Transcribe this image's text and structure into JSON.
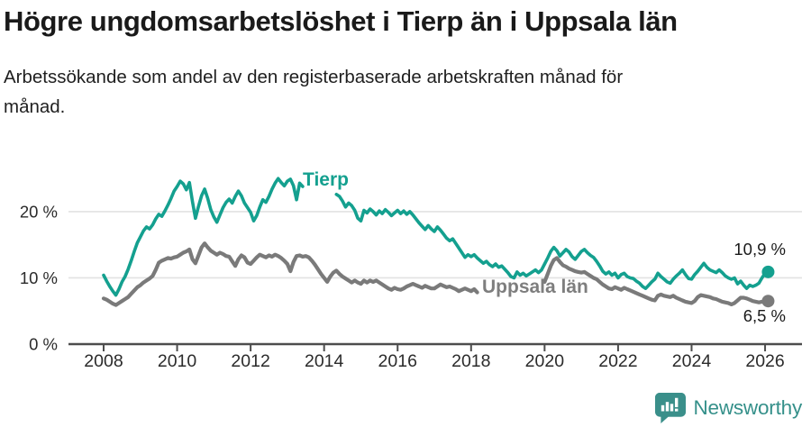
{
  "header": {
    "title": "Högre ungdomsarbetslöshet i Tierp än i Uppsala län",
    "subtitle": "Arbetssökande som andel av den registerbaserade arbetskraften månad för månad."
  },
  "chart_data": {
    "type": "line",
    "title": "Högre ungdomsarbetslöshet i Tierp än i Uppsala län",
    "subtitle": "Arbetssökande som andel av den registerbaserade arbetskraften månad för månad.",
    "unit": "%",
    "x_start": "2008-01",
    "x_end": "2026-02",
    "x_step": "month",
    "x_ticks": [
      "2008",
      "2010",
      "2012",
      "2014",
      "2016",
      "2018",
      "2020",
      "2022",
      "2024",
      "2026"
    ],
    "y_ticks": [
      "0 %",
      "10 %",
      "20 %"
    ],
    "ylim": [
      0,
      26
    ],
    "grid": "horizontal",
    "legend_position": "inline-labels",
    "series": [
      {
        "name": "Tierp",
        "color": "#14a08f",
        "end_label": "10,9 %",
        "end_value": 10.9,
        "values": [
          10.4,
          9.5,
          8.7,
          8.0,
          7.4,
          8.3,
          9.4,
          10.2,
          11.3,
          12.6,
          14.0,
          15.3,
          16.2,
          17.1,
          17.7,
          17.4,
          18.0,
          18.9,
          19.6,
          19.3,
          20.1,
          21.0,
          22.0,
          23.1,
          23.8,
          24.6,
          24.2,
          23.3,
          24.4,
          21.5,
          19.0,
          20.8,
          22.4,
          23.4,
          22.0,
          20.3,
          19.2,
          18.4,
          19.5,
          20.6,
          21.4,
          21.9,
          21.3,
          22.3,
          23.1,
          22.4,
          21.3,
          20.6,
          19.9,
          18.6,
          19.4,
          20.7,
          21.8,
          21.4,
          22.3,
          23.4,
          24.3,
          25.0,
          24.4,
          23.9,
          24.6,
          24.9,
          23.9,
          21.8,
          24.3,
          23.8,
          null,
          null,
          null,
          null,
          null,
          null,
          null,
          null,
          null,
          null,
          22.6,
          22.3,
          21.6,
          20.7,
          21.3,
          20.9,
          20.2,
          19.0,
          18.6,
          20.2,
          19.8,
          20.4,
          20.0,
          19.5,
          20.1,
          19.7,
          20.3,
          19.9,
          19.4,
          19.8,
          20.2,
          19.7,
          20.1,
          19.6,
          20.0,
          19.5,
          18.9,
          18.3,
          17.8,
          17.3,
          17.9,
          17.4,
          17.0,
          17.7,
          17.2,
          16.6,
          16.0,
          15.6,
          15.9,
          15.2,
          14.5,
          13.8,
          13.1,
          13.5,
          13.2,
          13.5,
          13.0,
          12.6,
          12.2,
          12.5,
          12.0,
          11.7,
          12.1,
          11.6,
          11.8,
          11.3,
          10.8,
          10.2,
          10.0,
          10.9,
          10.4,
          10.7,
          10.3,
          10.6,
          10.9,
          11.2,
          10.8,
          11.2,
          12.1,
          13.0,
          14.0,
          14.6,
          14.1,
          13.3,
          13.8,
          14.3,
          13.9,
          13.2,
          12.8,
          13.4,
          14.0,
          14.3,
          13.8,
          13.4,
          13.1,
          12.5,
          11.8,
          11.0,
          10.6,
          10.9,
          10.4,
          10.7,
          10.0,
          10.5,
          10.7,
          10.2,
          10.0,
          9.9,
          9.5,
          9.2,
          8.7,
          8.4,
          8.9,
          9.4,
          9.8,
          10.7,
          10.2,
          9.8,
          9.4,
          9.2,
          9.8,
          10.3,
          10.7,
          11.2,
          10.5,
          9.9,
          9.8,
          10.5,
          11.0,
          11.6,
          12.2,
          11.6,
          11.2,
          11.0,
          10.8,
          11.2,
          10.8,
          10.3,
          10.0,
          9.8,
          10.0,
          9.1,
          9.5,
          8.9,
          8.4,
          8.9,
          8.7,
          8.9,
          9.2,
          10.0,
          10.7,
          10.9
        ]
      },
      {
        "name": "Uppsala län",
        "color": "#7a7a7a",
        "end_label": "6,5 %",
        "end_value": 6.5,
        "values": [
          6.9,
          6.7,
          6.4,
          6.1,
          5.9,
          6.2,
          6.5,
          6.8,
          7.1,
          7.6,
          8.1,
          8.6,
          8.9,
          9.3,
          9.6,
          9.9,
          10.3,
          11.2,
          12.3,
          12.6,
          12.8,
          13.0,
          12.9,
          13.1,
          13.2,
          13.5,
          13.8,
          14.0,
          14.3,
          12.8,
          12.2,
          13.4,
          14.6,
          15.2,
          14.6,
          14.1,
          13.8,
          13.5,
          13.8,
          13.6,
          13.3,
          13.2,
          12.5,
          11.8,
          12.8,
          13.4,
          13.1,
          12.3,
          12.1,
          12.6,
          13.1,
          13.5,
          13.3,
          13.1,
          13.4,
          13.2,
          13.5,
          13.3,
          13.0,
          12.6,
          12.1,
          11.0,
          12.4,
          13.3,
          13.4,
          13.2,
          13.3,
          13.1,
          12.6,
          12.0,
          11.3,
          10.6,
          10.0,
          9.4,
          10.2,
          10.8,
          11.1,
          10.6,
          10.2,
          9.9,
          9.6,
          9.3,
          9.6,
          9.3,
          9.1,
          9.6,
          9.3,
          9.6,
          9.4,
          9.6,
          9.3,
          9.0,
          8.7,
          8.4,
          8.2,
          8.5,
          8.3,
          8.2,
          8.4,
          8.7,
          8.9,
          9.1,
          8.9,
          8.7,
          8.5,
          8.8,
          8.6,
          8.4,
          8.4,
          8.7,
          9.0,
          8.8,
          8.6,
          8.7,
          8.5,
          8.3,
          8.0,
          8.2,
          8.4,
          8.2,
          8.0,
          8.3,
          7.8,
          null,
          null,
          null,
          null,
          null,
          null,
          null,
          null,
          null,
          null,
          null,
          null,
          null,
          null,
          null,
          null,
          null,
          null,
          null,
          null,
          null,
          9.4,
          10.6,
          11.8,
          12.7,
          13.0,
          12.4,
          11.9,
          11.7,
          11.4,
          11.2,
          11.0,
          10.9,
          10.8,
          10.9,
          10.6,
          10.3,
          10.0,
          9.8,
          9.4,
          9.0,
          8.7,
          8.4,
          8.3,
          8.6,
          8.4,
          8.2,
          8.5,
          8.3,
          8.1,
          7.9,
          7.7,
          7.5,
          7.3,
          7.1,
          6.9,
          6.7,
          6.6,
          7.3,
          7.5,
          7.3,
          7.2,
          7.1,
          7.3,
          7.0,
          6.8,
          6.6,
          6.4,
          6.3,
          6.2,
          6.5,
          7.1,
          7.4,
          7.3,
          7.2,
          7.1,
          6.9,
          6.8,
          6.6,
          6.4,
          6.3,
          6.2,
          6.0,
          6.2,
          6.6,
          7.0,
          7.0,
          6.9,
          6.7,
          6.5,
          6.4,
          6.3,
          6.4,
          6.4,
          6.5
        ]
      }
    ],
    "style": {
      "axis_color": "#4d4d4d",
      "grid_color": "#e2e2e2",
      "tick_label_color": "#2b2b2b",
      "background": "#ffffff"
    }
  },
  "footer": {
    "brand": "Newsworthy",
    "brand_color": "#35908a"
  }
}
